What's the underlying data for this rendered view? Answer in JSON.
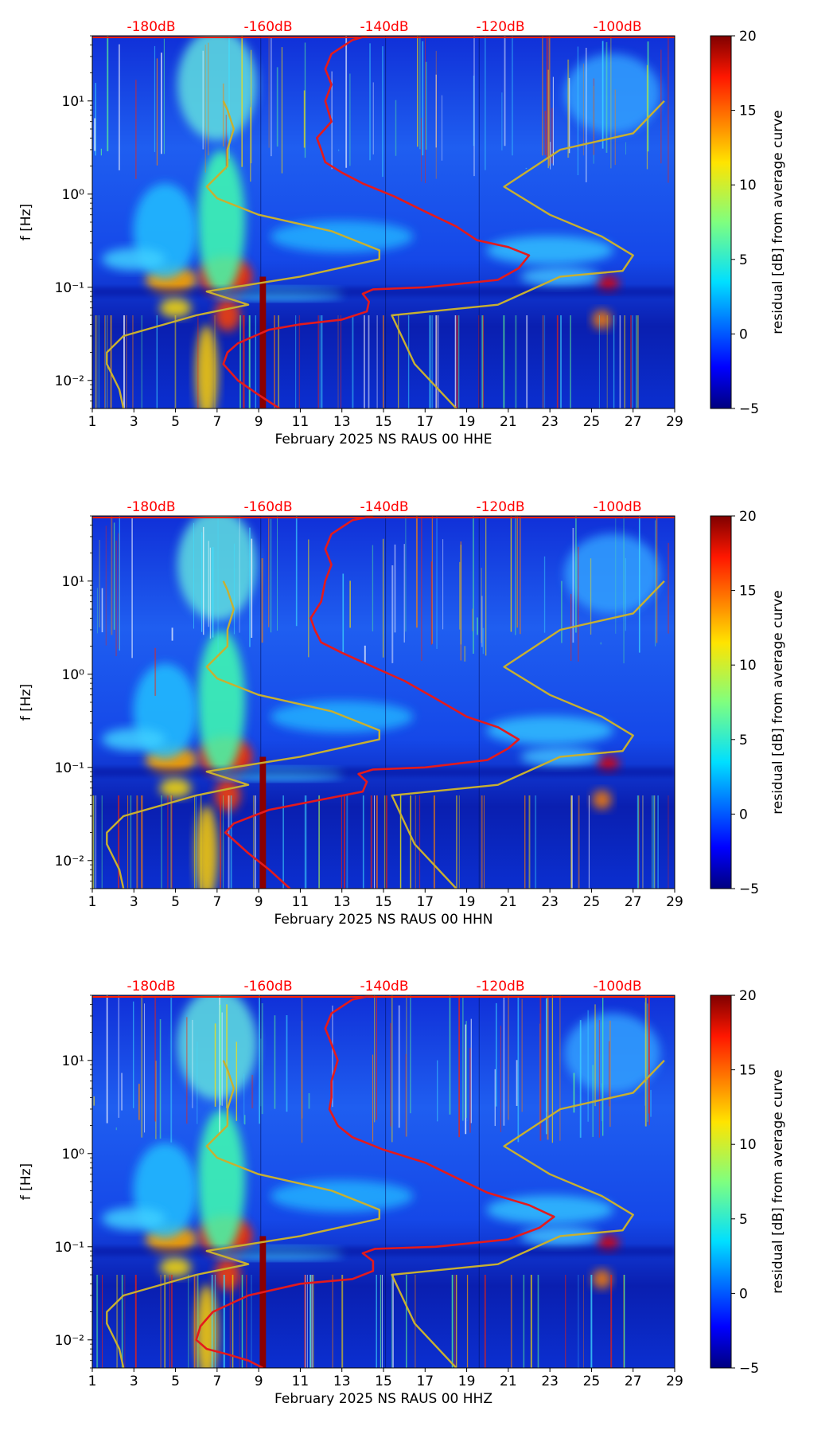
{
  "colors": {
    "red_curve": "#e41a1c",
    "olive_curve": "#c8b030",
    "db_label": "#ff0000"
  },
  "colorbar": {
    "label": "residual [dB] from average curve",
    "ticks": [
      -5,
      0,
      5,
      10,
      15,
      20
    ],
    "range": [
      -5,
      20
    ],
    "colormap": "jet"
  },
  "chart_data": [
    {
      "type": "heatmap",
      "xlabel": "February 2025 NS RAUS 00 HHE",
      "ylabel": "f [Hz]",
      "xlim": [
        1,
        29
      ],
      "ylim": [
        0.005,
        50
      ],
      "yscale": "log",
      "x_ticks": [
        "1",
        "3",
        "5",
        "7",
        "9",
        "11",
        "13",
        "15",
        "17",
        "19",
        "21",
        "23",
        "25",
        "27",
        "29"
      ],
      "y_ticks": [
        {
          "value": 0.01,
          "label": "10⁻²"
        },
        {
          "value": 0.1,
          "label": "10⁻¹"
        },
        {
          "value": 1,
          "label": "10⁰"
        },
        {
          "value": 10,
          "label": "10¹"
        }
      ],
      "top_db_labels": [
        "-180dB",
        "-160dB",
        "-140dB",
        "-120dB",
        "-100dB"
      ],
      "series": [
        {
          "name": "median PSD",
          "color": "#e41a1c",
          "points": [
            [
              10,
              0.005
            ],
            [
              9,
              0.007
            ],
            [
              8,
              0.01
            ],
            [
              7.3,
              0.015
            ],
            [
              7.5,
              0.02
            ],
            [
              8,
              0.025
            ],
            [
              9.5,
              0.035
            ],
            [
              11,
              0.04
            ],
            [
              13,
              0.045
            ],
            [
              14.2,
              0.055
            ],
            [
              14.3,
              0.07
            ],
            [
              14,
              0.085
            ],
            [
              14.5,
              0.095
            ],
            [
              17,
              0.1
            ],
            [
              20.5,
              0.12
            ],
            [
              21.5,
              0.16
            ],
            [
              22,
              0.22
            ],
            [
              21,
              0.27
            ],
            [
              19.5,
              0.32
            ],
            [
              18.5,
              0.45
            ],
            [
              17,
              0.65
            ],
            [
              15.5,
              0.95
            ],
            [
              14,
              1.3
            ],
            [
              13,
              1.7
            ],
            [
              12.2,
              2.2
            ],
            [
              12,
              3
            ],
            [
              11.8,
              4
            ],
            [
              12.5,
              6
            ],
            [
              12.2,
              10
            ],
            [
              12.5,
              15
            ],
            [
              12.2,
              22
            ],
            [
              12.5,
              32
            ],
            [
              13.5,
              45
            ],
            [
              14.2,
              50
            ]
          ]
        },
        {
          "name": "NLNM/NHNM model",
          "color": "#c8b030",
          "points": [
            [
              2.5,
              0.005
            ],
            [
              2.3,
              0.008
            ],
            [
              1.7,
              0.015
            ],
            [
              1.7,
              0.02
            ],
            [
              2.5,
              0.03
            ],
            [
              6,
              0.05
            ],
            [
              8.5,
              0.065
            ],
            [
              6.5,
              0.09
            ],
            [
              11,
              0.13
            ],
            [
              14.8,
              0.2
            ],
            [
              14.8,
              0.25
            ],
            [
              12.5,
              0.4
            ],
            [
              9,
              0.6
            ],
            [
              7,
              0.9
            ],
            [
              6.5,
              1.2
            ],
            [
              7.5,
              2
            ],
            [
              7.5,
              3
            ],
            [
              7.8,
              5
            ],
            [
              7.5,
              8
            ],
            [
              7.3,
              10
            ]
          ]
        },
        {
          "name": "NLNM/NHNM model 2",
          "color": "#c8b030",
          "points": [
            [
              18.5,
              0.005
            ],
            [
              16.5,
              0.015
            ],
            [
              15.4,
              0.05
            ],
            [
              20.5,
              0.065
            ],
            [
              23.5,
              0.13
            ],
            [
              26.5,
              0.15
            ],
            [
              27,
              0.22
            ],
            [
              25.5,
              0.35
            ],
            [
              23,
              0.6
            ],
            [
              20.8,
              1.2
            ],
            [
              23.5,
              3
            ],
            [
              27,
              4.5
            ],
            [
              28.5,
              10
            ]
          ]
        }
      ]
    },
    {
      "type": "heatmap",
      "xlabel": "February 2025 NS RAUS 00 HHN",
      "ylabel": "f [Hz]",
      "xlim": [
        1,
        29
      ],
      "ylim": [
        0.005,
        50
      ],
      "yscale": "log",
      "x_ticks": [
        "1",
        "3",
        "5",
        "7",
        "9",
        "11",
        "13",
        "15",
        "17",
        "19",
        "21",
        "23",
        "25",
        "27",
        "29"
      ],
      "y_ticks": [
        {
          "value": 0.01,
          "label": "10⁻²"
        },
        {
          "value": 0.1,
          "label": "10⁻¹"
        },
        {
          "value": 1,
          "label": "10⁰"
        },
        {
          "value": 10,
          "label": "10¹"
        }
      ],
      "top_db_labels": [
        "-180dB",
        "-160dB",
        "-140dB",
        "-120dB",
        "-100dB"
      ],
      "series": [
        {
          "name": "median PSD",
          "color": "#e41a1c",
          "points": [
            [
              10.5,
              0.005
            ],
            [
              9.5,
              0.008
            ],
            [
              8.5,
              0.012
            ],
            [
              7.4,
              0.02
            ],
            [
              7.8,
              0.025
            ],
            [
              9.5,
              0.035
            ],
            [
              12,
              0.045
            ],
            [
              14,
              0.055
            ],
            [
              14.2,
              0.07
            ],
            [
              13.8,
              0.085
            ],
            [
              14.5,
              0.095
            ],
            [
              17,
              0.1
            ],
            [
              20,
              0.12
            ],
            [
              21,
              0.16
            ],
            [
              21.5,
              0.2
            ],
            [
              20.5,
              0.27
            ],
            [
              19,
              0.35
            ],
            [
              17.5,
              0.55
            ],
            [
              16,
              0.85
            ],
            [
              14.5,
              1.2
            ],
            [
              13,
              1.7
            ],
            [
              12,
              2.2
            ],
            [
              11.7,
              3
            ],
            [
              11.5,
              4
            ],
            [
              12,
              6
            ],
            [
              12.2,
              10
            ],
            [
              12.5,
              15
            ],
            [
              12.2,
              22
            ],
            [
              12.5,
              32
            ],
            [
              13.5,
              45
            ],
            [
              14.5,
              50
            ]
          ]
        },
        {
          "name": "NLNM/NHNM model",
          "color": "#c8b030",
          "points": [
            [
              2.5,
              0.005
            ],
            [
              2.3,
              0.008
            ],
            [
              1.7,
              0.015
            ],
            [
              1.7,
              0.02
            ],
            [
              2.5,
              0.03
            ],
            [
              6,
              0.05
            ],
            [
              8.5,
              0.065
            ],
            [
              6.5,
              0.09
            ],
            [
              11,
              0.13
            ],
            [
              14.8,
              0.2
            ],
            [
              14.8,
              0.25
            ],
            [
              12.5,
              0.4
            ],
            [
              9,
              0.6
            ],
            [
              7,
              0.9
            ],
            [
              6.5,
              1.2
            ],
            [
              7.5,
              2
            ],
            [
              7.5,
              3
            ],
            [
              7.8,
              5
            ],
            [
              7.5,
              8
            ],
            [
              7.3,
              10
            ]
          ]
        },
        {
          "name": "NLNM/NHNM model 2",
          "color": "#c8b030",
          "points": [
            [
              18.5,
              0.005
            ],
            [
              16.5,
              0.015
            ],
            [
              15.4,
              0.05
            ],
            [
              20.5,
              0.065
            ],
            [
              23.5,
              0.13
            ],
            [
              26.5,
              0.15
            ],
            [
              27,
              0.22
            ],
            [
              25.5,
              0.35
            ],
            [
              23,
              0.6
            ],
            [
              20.8,
              1.2
            ],
            [
              23.5,
              3
            ],
            [
              27,
              4.5
            ],
            [
              28.5,
              10
            ]
          ]
        }
      ]
    },
    {
      "type": "heatmap",
      "xlabel": "February 2025 NS RAUS 00 HHZ",
      "ylabel": "f [Hz]",
      "xlim": [
        1,
        29
      ],
      "ylim": [
        0.005,
        50
      ],
      "yscale": "log",
      "x_ticks": [
        "1",
        "3",
        "5",
        "7",
        "9",
        "11",
        "13",
        "15",
        "17",
        "19",
        "21",
        "23",
        "25",
        "27",
        "29"
      ],
      "y_ticks": [
        {
          "value": 0.01,
          "label": "10⁻²"
        },
        {
          "value": 0.1,
          "label": "10⁻¹"
        },
        {
          "value": 1,
          "label": "10⁰"
        },
        {
          "value": 10,
          "label": "10¹"
        }
      ],
      "top_db_labels": [
        "-180dB",
        "-160dB",
        "-140dB",
        "-120dB",
        "-100dB"
      ],
      "series": [
        {
          "name": "median PSD",
          "color": "#e41a1c",
          "points": [
            [
              9.2,
              0.005
            ],
            [
              8.5,
              0.006
            ],
            [
              7.5,
              0.007
            ],
            [
              6.5,
              0.008
            ],
            [
              6,
              0.01
            ],
            [
              6.2,
              0.014
            ],
            [
              6.8,
              0.02
            ],
            [
              8.5,
              0.03
            ],
            [
              11,
              0.04
            ],
            [
              13.5,
              0.045
            ],
            [
              14.5,
              0.055
            ],
            [
              14.5,
              0.07
            ],
            [
              14,
              0.085
            ],
            [
              14.6,
              0.095
            ],
            [
              17.5,
              0.1
            ],
            [
              21,
              0.12
            ],
            [
              22.5,
              0.16
            ],
            [
              23.2,
              0.21
            ],
            [
              22,
              0.28
            ],
            [
              20,
              0.38
            ],
            [
              18.5,
              0.55
            ],
            [
              17,
              0.8
            ],
            [
              15,
              1.1
            ],
            [
              13.5,
              1.5
            ],
            [
              12.8,
              2
            ],
            [
              12.4,
              3
            ],
            [
              12.5,
              4
            ],
            [
              12.5,
              6
            ],
            [
              12.8,
              10
            ],
            [
              12.5,
              15
            ],
            [
              12.2,
              22
            ],
            [
              12.5,
              32
            ],
            [
              13.5,
              45
            ],
            [
              14.5,
              50
            ]
          ]
        },
        {
          "name": "NLNM/NHNM model",
          "color": "#c8b030",
          "points": [
            [
              2.5,
              0.005
            ],
            [
              2.3,
              0.008
            ],
            [
              1.7,
              0.015
            ],
            [
              1.7,
              0.02
            ],
            [
              2.5,
              0.03
            ],
            [
              6,
              0.05
            ],
            [
              8.5,
              0.065
            ],
            [
              6.5,
              0.09
            ],
            [
              11,
              0.13
            ],
            [
              14.8,
              0.2
            ],
            [
              14.8,
              0.25
            ],
            [
              12.5,
              0.4
            ],
            [
              9,
              0.6
            ],
            [
              7,
              0.9
            ],
            [
              6.5,
              1.2
            ],
            [
              7.5,
              2
            ],
            [
              7.5,
              3
            ],
            [
              7.8,
              5
            ],
            [
              7.5,
              8
            ],
            [
              7.3,
              10
            ]
          ]
        },
        {
          "name": "NLNM/NHNM model 2",
          "color": "#c8b030",
          "points": [
            [
              18.5,
              0.005
            ],
            [
              16.5,
              0.015
            ],
            [
              15.4,
              0.05
            ],
            [
              20.5,
              0.065
            ],
            [
              23.5,
              0.13
            ],
            [
              26.5,
              0.15
            ],
            [
              27,
              0.22
            ],
            [
              25.5,
              0.35
            ],
            [
              23,
              0.6
            ],
            [
              20.8,
              1.2
            ],
            [
              23.5,
              3
            ],
            [
              27,
              4.5
            ],
            [
              28.5,
              10
            ]
          ]
        }
      ]
    }
  ]
}
